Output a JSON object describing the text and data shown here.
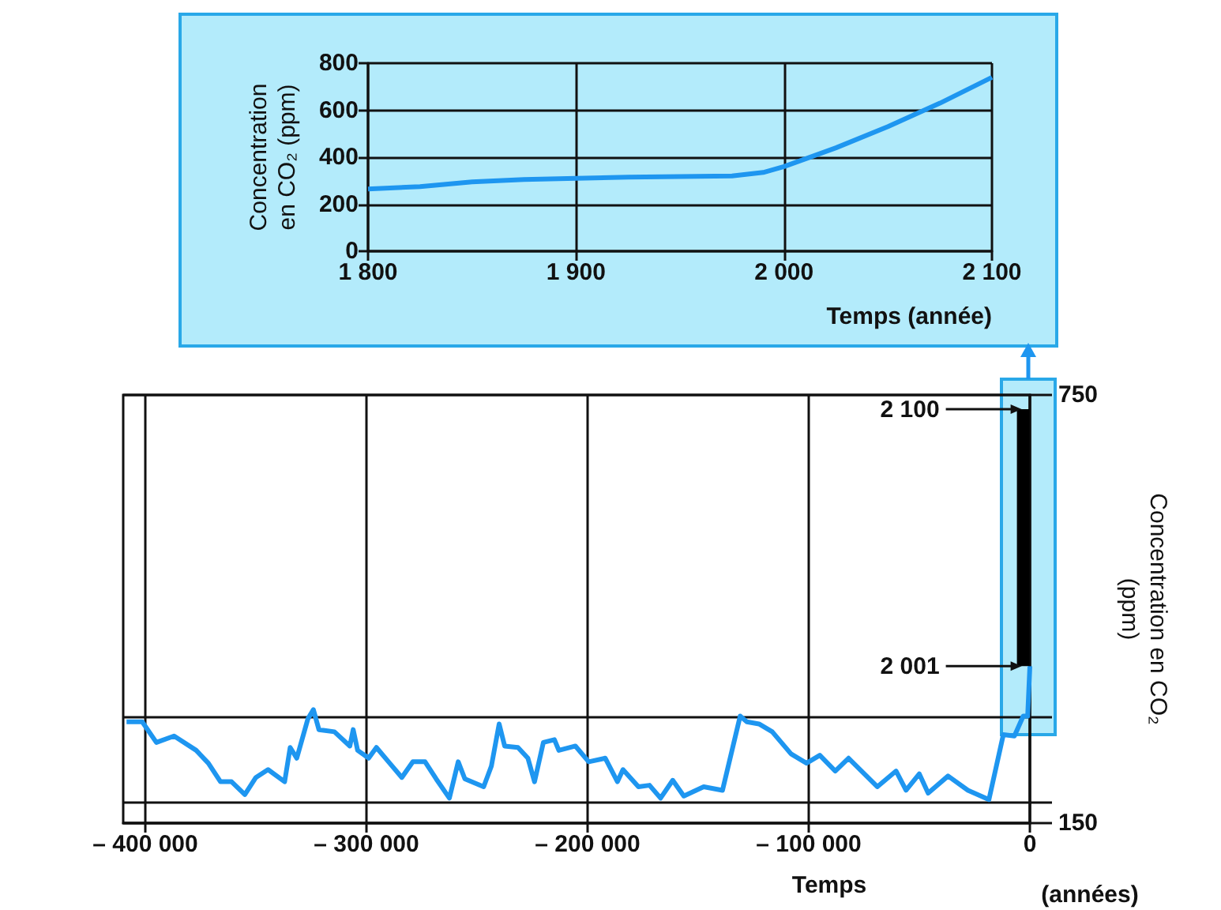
{
  "chart_data": [
    {
      "type": "line",
      "xlabel": "Temps (année)",
      "ylabel": "Concentration\nen CO₂ (ppm)",
      "xlim": [
        1800,
        2100
      ],
      "xticks": [
        {
          "value": 1800,
          "label": "1 800"
        },
        {
          "value": 1900,
          "label": "1 900"
        },
        {
          "value": 2000,
          "label": "2 000"
        },
        {
          "value": 2100,
          "label": "2 100"
        }
      ],
      "ylim": [
        0,
        800
      ],
      "yticks": [
        0,
        200,
        400,
        600,
        800
      ],
      "grid": true,
      "marker": "none",
      "series": [
        {
          "color": "#1e96f0",
          "x": [
            1800,
            1825,
            1850,
            1875,
            1900,
            1925,
            1950,
            1975,
            1990,
            2000,
            2025,
            2050,
            2075,
            2100
          ],
          "values": [
            265,
            275,
            295,
            305,
            310,
            315,
            318,
            320,
            335,
            360,
            440,
            530,
            630,
            740
          ]
        }
      ]
    },
    {
      "type": "line",
      "xlabel": "Temps",
      "ylabel": "Concentration en CO₂\n(ppm)",
      "xlim": [
        -410000,
        0
      ],
      "xticks": [
        {
          "value": -400000,
          "label": "– 400 000"
        },
        {
          "value": -300000,
          "label": "– 300 000"
        },
        {
          "value": -200000,
          "label": "– 200 000"
        },
        {
          "value": -100000,
          "label": "– 100 000"
        },
        0
      ],
      "ylim": [
        150,
        750
      ],
      "yticks": [
        150,
        {
          "value": 180,
          "label": null
        },
        {
          "value": 300,
          "label": null
        },
        750
      ],
      "grid": true,
      "marker": "none",
      "annotations": [
        "(années)",
        {
          "text": "2 100",
          "x": -3000,
          "y": 730
        },
        {
          "text": "2 001",
          "x": -3000,
          "y": 370
        }
      ],
      "series": [
        {
          "color": "#1e96f0",
          "x": [
            -408500,
            -401400,
            -395000,
            -387000,
            -377000,
            -371500,
            -366000,
            -361000,
            -355000,
            -350000,
            -344500,
            -337000,
            -334500,
            -331500,
            -326500,
            -324000,
            -321500,
            -314500,
            -307500,
            -306000,
            -304000,
            -299000,
            -295500,
            -289500,
            -284000,
            -279000,
            -273500,
            -268500,
            -262500,
            -258500,
            -255500,
            -247000,
            -243500,
            -240000,
            -237500,
            -231500,
            -227000,
            -224000,
            -220000,
            -215000,
            -213000,
            -205500,
            -199500,
            -192000,
            -186500,
            -184000,
            -177000,
            -172000,
            -167000,
            -161500,
            -156500,
            -147500,
            -139000,
            -131000,
            -128000,
            -122500,
            -116500,
            -108000,
            -101000,
            -95000,
            -88000,
            -82000,
            -69000,
            -60500,
            -56000,
            -50000,
            -46000,
            -37000,
            -28000,
            -18500,
            -12000,
            -7000,
            -3000,
            -1000,
            0
          ],
          "values": [
            292,
            292,
            263,
            272,
            252,
            234,
            208,
            208,
            190,
            214,
            225,
            208,
            256,
            241,
            296,
            309,
            281,
            278,
            258,
            281,
            252,
            241,
            256,
            234,
            214,
            236,
            236,
            212,
            185,
            236,
            212,
            201,
            230,
            289,
            258,
            256,
            241,
            208,
            263,
            267,
            252,
            258,
            236,
            241,
            208,
            225,
            201,
            203,
            185,
            210,
            188,
            201,
            196,
            300,
            292,
            289,
            278,
            247,
            234,
            245,
            223,
            241,
            201,
            223,
            196,
            219,
            192,
            216,
            196,
            183,
            274,
            272,
            300,
            300,
            370
          ]
        },
        {
          "type": "bar",
          "color": "#000000",
          "x": [
            -3000
          ],
          "base": [
            370
          ],
          "values": [
            360
          ]
        }
      ]
    }
  ]
}
